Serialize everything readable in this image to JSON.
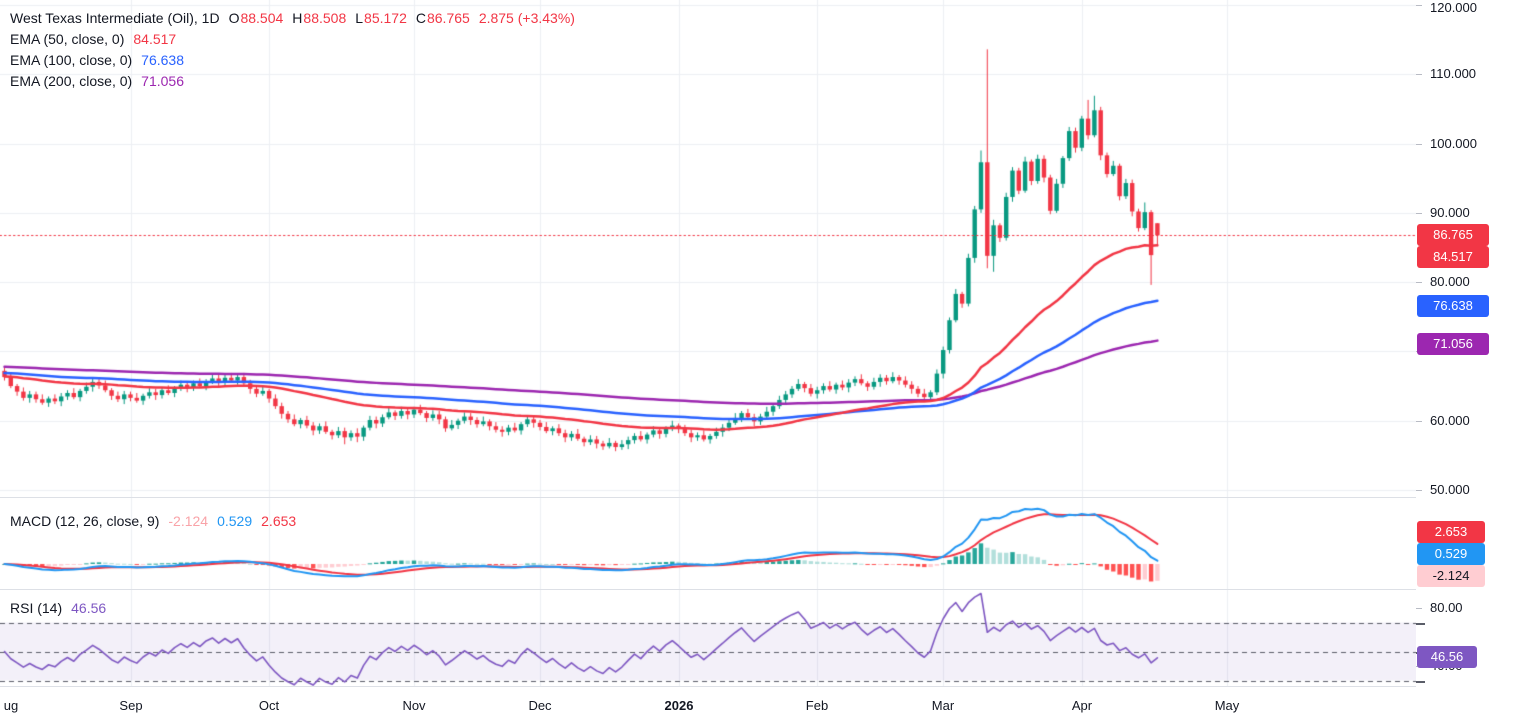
{
  "colors": {
    "up": "#089981",
    "down": "#F23645",
    "ema50": "#F23645",
    "ema100": "#2962FF",
    "ema200": "#9C27B0",
    "macd_line": "#2196F3",
    "signal_line": "#F23645",
    "hist_up": "#26A69A",
    "hist_up_fade": "#B2DFDB",
    "hist_down": "#FF5252",
    "hist_down_fade": "#FFCDD2",
    "hist_value_text": "#F9A3A8",
    "rsi": "#7E57C2",
    "rsi_band": "rgba(126,87,194,0.09)",
    "rsi_dash": "#5A5D68",
    "grid": "#EDEFF3",
    "text": "#131722",
    "price_line": "#F23645"
  },
  "header": {
    "symbol_title": "West Texas Intermediate (Oil), 1D",
    "ohlc": {
      "o_label": "O",
      "o": "88.504",
      "h_label": "H",
      "h": "88.508",
      "l_label": "L",
      "l": "85.172",
      "c_label": "C",
      "c": "86.765",
      "change": "2.875 (+3.43%)"
    },
    "emas": [
      {
        "label": "EMA (50, close, 0)",
        "value": "84.517"
      },
      {
        "label": "EMA (100, close, 0)",
        "value": "76.638"
      },
      {
        "label": "EMA (200, close, 0)",
        "value": "71.056"
      }
    ]
  },
  "macd_panel": {
    "label": "MACD (12, 26, close, 9)",
    "hist_value": "-2.124",
    "macd_value": "0.529",
    "signal_value": "2.653"
  },
  "rsi_panel": {
    "label": "RSI (14)",
    "value": "46.56"
  },
  "price_axis": {
    "badges": [
      {
        "id": "price",
        "text": "86.765",
        "bg": "#F23645",
        "fg": "#FFFFFF"
      },
      {
        "id": "ema50",
        "text": "84.517",
        "bg": "#F23645",
        "fg": "#FFFFFF"
      },
      {
        "id": "ema100",
        "text": "76.638",
        "bg": "#2962FF",
        "fg": "#FFFFFF"
      },
      {
        "id": "ema200",
        "text": "71.056",
        "bg": "#9C27B0",
        "fg": "#FFFFFF"
      },
      {
        "id": "macd_signal",
        "text": "2.653",
        "bg": "#F23645",
        "fg": "#FFFFFF"
      },
      {
        "id": "macd_line",
        "text": "0.529",
        "bg": "#2196F3",
        "fg": "#FFFFFF"
      },
      {
        "id": "macd_hist",
        "text": "-2.124",
        "bg": "#FFCDD2",
        "fg": "#131722"
      },
      {
        "id": "rsi",
        "text": "46.56",
        "bg": "#7E57C2",
        "fg": "#FFFFFF"
      }
    ]
  },
  "chart_data": {
    "type": "candlestick",
    "symbol": "West Texas Intermediate (Oil)",
    "interval": "1D",
    "last_bar": {
      "open": 88.504,
      "high": 88.508,
      "low": 85.172,
      "close": 86.765,
      "change": 2.875,
      "change_pct": 3.43
    },
    "price_line": 86.765,
    "price_ticks": [
      {
        "value": 120,
        "label": "120.000"
      },
      {
        "value": 110,
        "label": "110.000"
      },
      {
        "value": 100,
        "label": "100.000"
      },
      {
        "value": 90,
        "label": "90.000"
      },
      {
        "value": 80,
        "label": "80.000"
      },
      {
        "value": 70,
        "label": "70.000"
      },
      {
        "value": 60,
        "label": "60.000"
      },
      {
        "value": 50,
        "label": "50.000"
      }
    ],
    "rsi_ticks": [
      {
        "value": 80,
        "label": "80.00"
      },
      {
        "value": 40,
        "label": "40.00"
      }
    ],
    "months": [
      {
        "label": "ug",
        "i": 1,
        "gridline": false
      },
      {
        "label": "Sep",
        "i": 20,
        "gridline": true
      },
      {
        "label": "Oct",
        "i": 42,
        "gridline": true
      },
      {
        "label": "Nov",
        "i": 65,
        "gridline": true
      },
      {
        "label": "Dec",
        "i": 85,
        "gridline": true
      },
      {
        "label": "2026",
        "i": 107,
        "gridline": true,
        "bold": true
      },
      {
        "label": "Feb",
        "i": 129,
        "gridline": true
      },
      {
        "label": "Mar",
        "i": 149,
        "gridline": true
      },
      {
        "label": "Apr",
        "i": 171,
        "gridline": true
      },
      {
        "label": "May",
        "i": 194,
        "gridline": true
      }
    ],
    "indicators": {
      "ema": [
        {
          "period": 50,
          "value": 84.517,
          "seed": 66.4
        },
        {
          "period": 100,
          "value": 76.638,
          "seed": 66.9
        },
        {
          "period": 200,
          "value": 71.056,
          "seed": 67.8
        }
      ],
      "macd": {
        "fast": 12,
        "slow": 26,
        "smoothing": 9,
        "hist": -2.124,
        "macd": 0.529,
        "signal": 2.653
      },
      "rsi": {
        "period": 14,
        "value": 46.56,
        "levels": [
          70,
          50,
          30
        ]
      }
    },
    "candles_ohlc": [
      [
        67.2,
        67.6,
        65.8,
        66.3
      ],
      [
        66.3,
        67.0,
        64.7,
        65.0
      ],
      [
        65.0,
        65.3,
        63.6,
        64.2
      ],
      [
        64.2,
        64.8,
        62.9,
        63.3
      ],
      [
        63.3,
        64.3,
        62.6,
        63.8
      ],
      [
        63.8,
        64.2,
        62.6,
        63.1
      ],
      [
        63.1,
        63.8,
        62.3,
        62.6
      ],
      [
        62.6,
        63.5,
        62.0,
        63.2
      ],
      [
        63.2,
        63.8,
        62.4,
        62.8
      ],
      [
        62.8,
        64.0,
        62.1,
        63.5
      ],
      [
        63.5,
        64.4,
        63.0,
        64.0
      ],
      [
        64.0,
        64.7,
        63.1,
        63.4
      ],
      [
        63.4,
        64.6,
        62.8,
        64.3
      ],
      [
        64.3,
        65.5,
        63.9,
        64.9
      ],
      [
        64.9,
        66.1,
        64.2,
        65.6
      ],
      [
        65.6,
        66.0,
        64.6,
        65.1
      ],
      [
        65.1,
        65.8,
        64.1,
        64.4
      ],
      [
        64.4,
        64.7,
        63.0,
        63.6
      ],
      [
        63.6,
        64.2,
        62.7,
        63.1
      ],
      [
        63.1,
        64.3,
        62.4,
        63.8
      ],
      [
        63.8,
        64.2,
        62.8,
        63.3
      ],
      [
        63.3,
        64.0,
        62.6,
        62.9
      ],
      [
        62.9,
        63.9,
        62.3,
        63.6
      ],
      [
        63.6,
        64.7,
        63.2,
        64.1
      ],
      [
        64.1,
        64.6,
        63.0,
        63.7
      ],
      [
        63.7,
        64.8,
        63.2,
        64.4
      ],
      [
        64.4,
        65.1,
        63.7,
        64.0
      ],
      [
        64.0,
        65.0,
        63.4,
        64.7
      ],
      [
        64.7,
        65.8,
        64.3,
        65.2
      ],
      [
        65.2,
        65.7,
        64.1,
        64.8
      ],
      [
        64.8,
        65.8,
        64.3,
        65.4
      ],
      [
        65.4,
        66.1,
        64.7,
        65.0
      ],
      [
        65.0,
        66.0,
        64.4,
        65.7
      ],
      [
        65.7,
        66.7,
        65.3,
        66.1
      ],
      [
        66.1,
        66.6,
        64.9,
        65.6
      ],
      [
        65.6,
        66.6,
        65.1,
        66.2
      ],
      [
        66.2,
        66.9,
        65.5,
        65.8
      ],
      [
        65.8,
        66.6,
        65.2,
        66.3
      ],
      [
        66.3,
        66.9,
        65.0,
        65.4
      ],
      [
        65.4,
        65.9,
        63.9,
        64.6
      ],
      [
        64.6,
        65.0,
        63.4,
        63.9
      ],
      [
        63.9,
        65.0,
        63.6,
        64.3
      ],
      [
        64.3,
        64.6,
        62.6,
        63.2
      ],
      [
        63.2,
        63.8,
        61.7,
        62.1
      ],
      [
        62.1,
        62.6,
        60.3,
        61.0
      ],
      [
        61.0,
        61.4,
        59.7,
        60.2
      ],
      [
        60.2,
        60.9,
        59.2,
        59.5
      ],
      [
        59.5,
        60.4,
        58.9,
        60.1
      ],
      [
        60.1,
        60.7,
        58.9,
        59.3
      ],
      [
        59.3,
        59.8,
        57.9,
        58.6
      ],
      [
        58.6,
        59.6,
        58.1,
        59.2
      ],
      [
        59.2,
        59.9,
        58.1,
        58.4
      ],
      [
        58.4,
        58.7,
        57.3,
        57.9
      ],
      [
        57.9,
        59.1,
        57.5,
        58.5
      ],
      [
        58.5,
        59.0,
        56.6,
        57.6
      ],
      [
        57.6,
        58.6,
        57.1,
        58.2
      ],
      [
        58.2,
        58.9,
        56.9,
        57.7
      ],
      [
        57.7,
        59.3,
        57.1,
        59.0
      ],
      [
        59.0,
        60.7,
        58.6,
        60.1
      ],
      [
        60.1,
        60.6,
        58.9,
        59.6
      ],
      [
        59.6,
        60.9,
        59.1,
        60.5
      ],
      [
        60.5,
        61.9,
        60.2,
        61.2
      ],
      [
        61.2,
        61.5,
        60.1,
        60.7
      ],
      [
        60.7,
        62.0,
        60.3,
        61.4
      ],
      [
        61.4,
        61.9,
        60.2,
        60.9
      ],
      [
        60.9,
        62.0,
        60.4,
        61.6
      ],
      [
        61.6,
        62.3,
        60.8,
        61.1
      ],
      [
        61.1,
        61.4,
        59.8,
        60.4
      ],
      [
        60.4,
        61.5,
        60.0,
        60.9
      ],
      [
        60.9,
        61.4,
        59.5,
        60.2
      ],
      [
        60.2,
        60.6,
        58.4,
        58.9
      ],
      [
        58.9,
        60.1,
        58.6,
        59.4
      ],
      [
        59.4,
        60.3,
        58.8,
        60.0
      ],
      [
        60.0,
        61.2,
        59.6,
        60.6
      ],
      [
        60.6,
        61.1,
        59.4,
        60.1
      ],
      [
        60.1,
        60.5,
        59.0,
        59.5
      ],
      [
        59.5,
        60.6,
        59.2,
        59.9
      ],
      [
        59.9,
        60.2,
        58.6,
        59.2
      ],
      [
        59.2,
        59.8,
        58.3,
        58.7
      ],
      [
        58.7,
        59.2,
        57.7,
        58.4
      ],
      [
        58.4,
        59.4,
        57.9,
        59.0
      ],
      [
        59.0,
        59.7,
        58.3,
        58.6
      ],
      [
        58.6,
        59.8,
        58.0,
        59.5
      ],
      [
        59.5,
        60.8,
        59.1,
        60.2
      ],
      [
        60.2,
        60.7,
        59.0,
        59.7
      ],
      [
        59.7,
        60.1,
        58.6,
        59.1
      ],
      [
        59.1,
        59.8,
        58.2,
        58.5
      ],
      [
        58.5,
        59.2,
        57.9,
        58.9
      ],
      [
        58.9,
        59.5,
        57.8,
        58.2
      ],
      [
        58.2,
        58.7,
        56.9,
        57.6
      ],
      [
        57.6,
        58.5,
        57.1,
        58.1
      ],
      [
        58.1,
        58.8,
        57.1,
        57.4
      ],
      [
        57.4,
        57.7,
        56.3,
        56.9
      ],
      [
        56.9,
        57.9,
        56.5,
        57.3
      ],
      [
        57.3,
        57.8,
        56.0,
        56.7
      ],
      [
        56.7,
        57.1,
        55.8,
        56.3
      ],
      [
        56.3,
        57.5,
        56.0,
        56.8
      ],
      [
        56.8,
        57.1,
        55.6,
        56.2
      ],
      [
        56.2,
        57.2,
        55.8,
        56.6
      ],
      [
        56.6,
        57.7,
        55.9,
        57.2
      ],
      [
        57.2,
        58.2,
        56.7,
        57.8
      ],
      [
        57.8,
        58.5,
        57.0,
        57.3
      ],
      [
        57.3,
        58.3,
        56.7,
        58.0
      ],
      [
        58.0,
        59.2,
        57.6,
        58.6
      ],
      [
        58.6,
        59.1,
        57.4,
        58.1
      ],
      [
        58.1,
        59.2,
        57.6,
        58.8
      ],
      [
        58.8,
        60.0,
        58.5,
        59.3
      ],
      [
        59.3,
        59.6,
        58.2,
        58.8
      ],
      [
        58.8,
        59.4,
        57.8,
        58.2
      ],
      [
        58.2,
        58.7,
        56.9,
        57.6
      ],
      [
        57.6,
        58.3,
        57.1,
        57.9
      ],
      [
        57.9,
        58.6,
        57.0,
        57.3
      ],
      [
        57.3,
        58.1,
        56.7,
        57.8
      ],
      [
        57.8,
        59.0,
        57.4,
        58.4
      ],
      [
        58.4,
        59.5,
        57.7,
        59.0
      ],
      [
        59.0,
        60.1,
        58.5,
        59.7
      ],
      [
        59.7,
        61.1,
        59.4,
        60.4
      ],
      [
        60.4,
        61.4,
        59.8,
        61.1
      ],
      [
        61.1,
        61.7,
        60.1,
        60.5
      ],
      [
        60.5,
        61.0,
        59.2,
        59.9
      ],
      [
        59.9,
        61.0,
        59.4,
        60.6
      ],
      [
        60.6,
        62.0,
        60.3,
        61.3
      ],
      [
        61.3,
        62.4,
        60.7,
        62.1
      ],
      [
        62.1,
        63.6,
        61.7,
        63.0
      ],
      [
        63.0,
        64.3,
        62.3,
        63.8
      ],
      [
        63.8,
        65.0,
        63.3,
        64.6
      ],
      [
        64.6,
        66.0,
        64.3,
        65.3
      ],
      [
        65.3,
        65.6,
        64.1,
        64.7
      ],
      [
        64.7,
        65.3,
        63.5,
        63.9
      ],
      [
        63.9,
        64.9,
        63.2,
        64.4
      ],
      [
        64.4,
        65.4,
        63.9,
        65.0
      ],
      [
        65.0,
        65.7,
        64.2,
        64.5
      ],
      [
        64.5,
        65.5,
        63.9,
        65.2
      ],
      [
        65.2,
        65.8,
        64.4,
        64.8
      ],
      [
        64.8,
        66.0,
        64.1,
        65.5
      ],
      [
        65.5,
        66.4,
        65.0,
        66.0
      ],
      [
        66.0,
        66.7,
        65.1,
        65.4
      ],
      [
        65.4,
        65.7,
        64.3,
        64.9
      ],
      [
        64.9,
        66.2,
        64.5,
        65.6
      ],
      [
        65.6,
        66.7,
        64.9,
        66.2
      ],
      [
        66.2,
        66.6,
        65.2,
        65.7
      ],
      [
        65.7,
        67.0,
        65.4,
        66.3
      ],
      [
        66.3,
        66.6,
        65.2,
        65.8
      ],
      [
        65.8,
        66.4,
        64.8,
        65.2
      ],
      [
        65.2,
        65.7,
        63.9,
        64.6
      ],
      [
        64.6,
        65.0,
        63.4,
        63.9
      ],
      [
        63.9,
        64.6,
        63.1,
        63.4
      ],
      [
        63.4,
        64.4,
        62.8,
        64.1
      ],
      [
        64.1,
        67.4,
        63.7,
        66.8
      ],
      [
        66.8,
        70.7,
        66.1,
        70.2
      ],
      [
        70.2,
        74.9,
        69.7,
        74.5
      ],
      [
        74.5,
        79.0,
        74.2,
        78.3
      ],
      [
        78.3,
        78.6,
        76.3,
        76.9
      ],
      [
        76.9,
        84.1,
        76.5,
        83.5
      ],
      [
        83.5,
        91.0,
        82.8,
        90.5
      ],
      [
        90.5,
        99.0,
        90.0,
        97.3
      ],
      [
        97.3,
        113.6,
        82.0,
        83.8
      ],
      [
        83.8,
        89.0,
        81.5,
        88.2
      ],
      [
        88.2,
        88.5,
        85.8,
        86.4
      ],
      [
        86.4,
        92.9,
        86.0,
        92.3
      ],
      [
        92.3,
        96.6,
        91.6,
        96.1
      ],
      [
        96.1,
        96.5,
        92.7,
        93.2
      ],
      [
        93.2,
        98.1,
        92.9,
        97.4
      ],
      [
        97.4,
        97.7,
        94.0,
        94.6
      ],
      [
        94.6,
        98.4,
        94.2,
        97.8
      ],
      [
        97.8,
        98.3,
        94.4,
        95.1
      ],
      [
        95.1,
        95.5,
        89.8,
        90.3
      ],
      [
        90.3,
        94.9,
        90.0,
        94.2
      ],
      [
        94.2,
        98.2,
        93.6,
        97.9
      ],
      [
        97.9,
        102.4,
        97.5,
        101.8
      ],
      [
        101.8,
        102.3,
        98.7,
        99.4
      ],
      [
        99.4,
        104.0,
        98.9,
        103.6
      ],
      [
        103.6,
        106.3,
        100.6,
        101.2
      ],
      [
        101.2,
        106.9,
        100.9,
        104.8
      ],
      [
        104.8,
        105.3,
        97.6,
        98.3
      ],
      [
        98.3,
        98.7,
        95.1,
        95.6
      ],
      [
        95.6,
        97.5,
        95.3,
        96.8
      ],
      [
        96.8,
        97.1,
        91.8,
        92.4
      ],
      [
        92.4,
        94.9,
        92.0,
        94.3
      ],
      [
        94.3,
        94.8,
        89.5,
        90.2
      ],
      [
        90.2,
        90.6,
        87.3,
        87.8
      ],
      [
        87.8,
        91.5,
        87.5,
        90.1
      ],
      [
        90.1,
        90.4,
        79.6,
        83.9
      ],
      [
        88.504,
        88.508,
        85.172,
        86.765
      ]
    ]
  }
}
